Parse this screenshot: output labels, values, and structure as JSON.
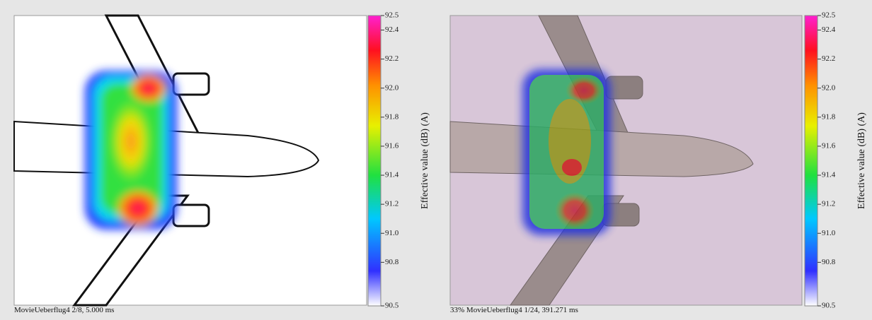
{
  "panels": [
    {
      "caption": "MovieUeberflug4  2/8, 5.000 ms",
      "colorbar": {
        "label": "Effective value (dB) (A)",
        "ticks": [
          92.5,
          92.4,
          92.2,
          {
            "value": 92,
            "label": "92.0"
          },
          91.8,
          91.6,
          91.4,
          91.2,
          {
            "value": 91,
            "label": "91.0"
          },
          90.8,
          90.5
        ]
      }
    },
    {
      "caption": "33% MovieUeberflug4  1/24, 391.271 ms",
      "colorbar": {
        "label": "Effective value (dB) (A)",
        "ticks": [
          92.5,
          92.4,
          92.2,
          {
            "value": 92,
            "label": "92.0"
          },
          91.8,
          91.6,
          91.4,
          91.2,
          {
            "value": 91,
            "label": "91.0"
          },
          90.8,
          90.5
        ]
      }
    }
  ]
}
